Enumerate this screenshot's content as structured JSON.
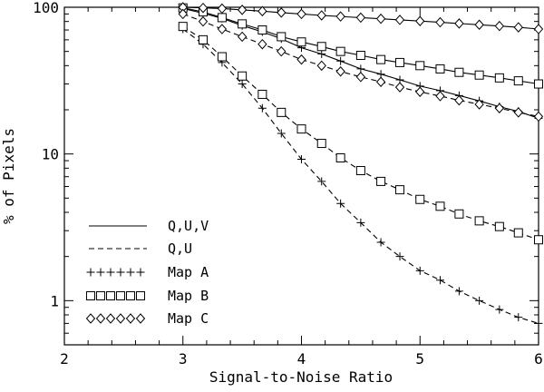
{
  "chart_data": {
    "type": "line",
    "title": "",
    "xlabel": "Signal-to-Noise Ratio",
    "ylabel": "% of Pixels",
    "xscale": "linear",
    "yscale": "log",
    "xlim": [
      2,
      6
    ],
    "ylim": [
      0.5,
      100
    ],
    "xticks": [
      2,
      3,
      4,
      5,
      6
    ],
    "xtick_labels": [
      "2",
      "3",
      "4",
      "5",
      "6"
    ],
    "yticks": [
      1,
      10,
      100
    ],
    "ytick_labels": [
      "1",
      "10",
      "100"
    ],
    "grid": false,
    "legend_position": "bottom-left",
    "legend": [
      {
        "label": "Q,U,V",
        "style": "solid"
      },
      {
        "label": "Q,U",
        "style": "dashed"
      },
      {
        "label": "Map A",
        "marker": "plus"
      },
      {
        "label": "Map B",
        "marker": "square"
      },
      {
        "label": "Map C",
        "marker": "diamond"
      }
    ],
    "series": [
      {
        "map": "A",
        "stokes": "Q,U,V",
        "line": "solid",
        "marker": "plus",
        "x": [
          3.0,
          3.17,
          3.33,
          3.5,
          3.67,
          3.83,
          4.0,
          4.17,
          4.33,
          4.5,
          4.67,
          4.83,
          5.0,
          5.17,
          5.33,
          5.5,
          5.67,
          5.83,
          6.0
        ],
        "y": [
          98,
          91,
          84,
          75,
          68,
          61,
          53,
          48,
          43,
          38,
          35,
          32,
          29,
          27,
          25,
          23,
          21,
          19.5,
          17.5
        ]
      },
      {
        "map": "A",
        "stokes": "Q,U",
        "line": "dashed",
        "marker": "plus",
        "x": [
          3.0,
          3.17,
          3.33,
          3.5,
          3.67,
          3.83,
          4.0,
          4.17,
          4.33,
          4.5,
          4.67,
          4.83,
          5.0,
          5.17,
          5.33,
          5.5,
          5.67,
          5.83,
          6.0
        ],
        "y": [
          71,
          56,
          42,
          30,
          20.5,
          13.8,
          9.2,
          6.5,
          4.6,
          3.4,
          2.5,
          2.0,
          1.6,
          1.38,
          1.16,
          1.0,
          0.87,
          0.77,
          0.7
        ]
      },
      {
        "map": "B",
        "stokes": "Q,U,V",
        "line": "solid",
        "marker": "square",
        "x": [
          3.0,
          3.17,
          3.33,
          3.5,
          3.67,
          3.83,
          4.0,
          4.17,
          4.33,
          4.5,
          4.67,
          4.83,
          5.0,
          5.17,
          5.33,
          5.5,
          5.67,
          5.83,
          6.0
        ],
        "y": [
          99,
          93,
          85,
          77,
          70,
          63,
          58,
          54,
          50,
          47,
          44,
          42,
          40,
          38,
          36,
          34.5,
          33,
          31.5,
          30
        ]
      },
      {
        "map": "B",
        "stokes": "Q,U",
        "line": "dashed",
        "marker": "square",
        "x": [
          3.0,
          3.17,
          3.33,
          3.5,
          3.67,
          3.83,
          4.0,
          4.17,
          4.33,
          4.5,
          4.67,
          4.83,
          5.0,
          5.17,
          5.33,
          5.5,
          5.67,
          5.83,
          6.0
        ],
        "y": [
          74,
          60,
          46,
          34,
          25.5,
          19.2,
          14.8,
          11.8,
          9.4,
          7.7,
          6.5,
          5.7,
          4.9,
          4.4,
          3.9,
          3.5,
          3.2,
          2.9,
          2.6
        ]
      },
      {
        "map": "C",
        "stokes": "Q,U,V",
        "line": "solid",
        "marker": "diamond",
        "x": [
          3.0,
          3.17,
          3.33,
          3.5,
          3.67,
          3.83,
          4.0,
          4.17,
          4.33,
          4.5,
          4.67,
          4.83,
          5.0,
          5.17,
          5.33,
          5.5,
          5.67,
          5.83,
          6.0
        ],
        "y": [
          100,
          99,
          98,
          96,
          94,
          92,
          90,
          88,
          86.5,
          85,
          83.5,
          82,
          80.5,
          79,
          77.5,
          76,
          74.5,
          73,
          71
        ]
      },
      {
        "map": "C",
        "stokes": "Q,U",
        "line": "dashed",
        "marker": "diamond",
        "x": [
          3.0,
          3.17,
          3.33,
          3.5,
          3.67,
          3.83,
          4.0,
          4.17,
          4.33,
          4.5,
          4.67,
          4.83,
          5.0,
          5.17,
          5.33,
          5.5,
          5.67,
          5.83,
          6.0
        ],
        "y": [
          90,
          80,
          71,
          63,
          56,
          50,
          44,
          40,
          36.5,
          33.5,
          31,
          28.5,
          26.5,
          24.8,
          23.2,
          21.8,
          20.5,
          19.2,
          18
        ]
      }
    ]
  }
}
